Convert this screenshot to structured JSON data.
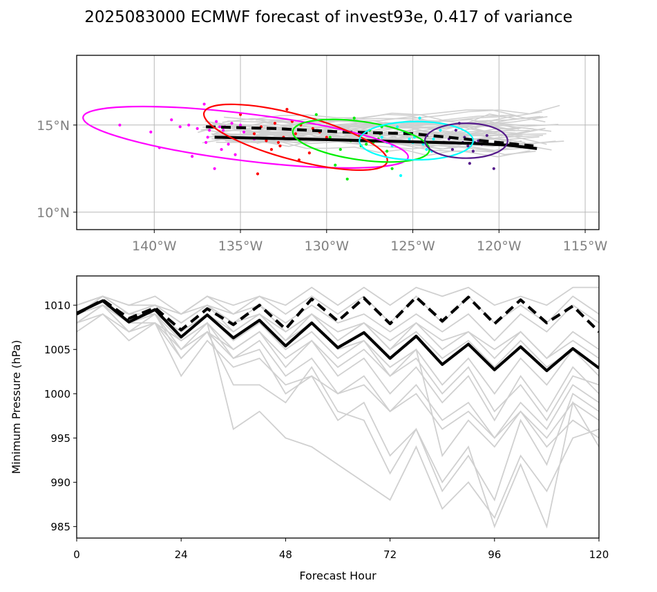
{
  "title": "2025083000 ECMWF forecast of invest93e, 0.417 of variance",
  "colors": {
    "ensemble": "#d0d0d0",
    "mean": "#000000",
    "grid": "#b8b8b8",
    "ellipse_day1": "#ff00ff",
    "ellipse_day2": "#ff0000",
    "ellipse_day3": "#00ee00",
    "ellipse_day4": "#00ffff",
    "ellipse_day5": "#551a8b"
  },
  "chart_data": [
    {
      "type": "scatter",
      "panel": "track-map",
      "title": "",
      "xlabel": "",
      "ylabel": "",
      "xlim": [
        -144.5,
        -114.2
      ],
      "ylim": [
        9.0,
        19.0
      ],
      "x_ticks": [
        -140,
        -135,
        -130,
        -125,
        -120,
        -115
      ],
      "x_tick_labels": [
        "140°W",
        "135°W",
        "130°W",
        "125°W",
        "120°W",
        "115°W"
      ],
      "y_ticks": [
        10,
        15
      ],
      "y_tick_labels": [
        "10°N",
        "15°N"
      ],
      "grid": true,
      "mean_tracks": [
        {
          "style": "dashed",
          "lon": [
            -137.0,
            -135.0,
            -133.0,
            -131.0,
            -129.0,
            -127.0,
            -125.0,
            -123.0,
            -121.0,
            -119.5,
            -118.0
          ],
          "lat": [
            14.9,
            14.85,
            14.8,
            14.7,
            14.6,
            14.55,
            14.5,
            14.3,
            14.1,
            13.95,
            13.8
          ]
        },
        {
          "style": "solid",
          "lon": [
            -136.5,
            -134.0,
            -131.5,
            -129.5,
            -127.5,
            -125.5,
            -123.5,
            -121.5,
            -119.5,
            -117.8
          ],
          "lat": [
            14.3,
            14.25,
            14.2,
            14.15,
            14.1,
            14.05,
            14.0,
            13.95,
            13.85,
            13.65
          ]
        }
      ],
      "ellipses": [
        {
          "name": "",
          "color_key": "ellipse_day1",
          "center_lon": -134.7,
          "center_lat": 14.3,
          "semi_major_deg": 9.5,
          "semi_minor_deg": 1.35,
          "angle_deg": -7
        },
        {
          "name": "",
          "color_key": "ellipse_day2",
          "center_lon": -131.8,
          "center_lat": 14.3,
          "semi_major_deg": 5.5,
          "semi_minor_deg": 1.3,
          "angle_deg": -15
        },
        {
          "name": "",
          "color_key": "ellipse_day3",
          "center_lon": -128.0,
          "center_lat": 14.1,
          "semi_major_deg": 4.0,
          "semi_minor_deg": 1.1,
          "angle_deg": -8
        },
        {
          "name": "",
          "color_key": "ellipse_day4",
          "center_lon": -124.8,
          "center_lat": 14.1,
          "semi_major_deg": 3.3,
          "semi_minor_deg": 1.1,
          "angle_deg": 0
        },
        {
          "name": "",
          "color_key": "ellipse_day5",
          "center_lon": -121.9,
          "center_lat": 14.1,
          "semi_major_deg": 2.4,
          "semi_minor_deg": 1.0,
          "angle_deg": 0
        }
      ],
      "points": [
        {
          "color_key": "ellipse_day1",
          "lon": [
            -142.0,
            -140.2,
            -139.7,
            -138.5,
            -137.5,
            -137.1,
            -136.9,
            -136.4,
            -136.0,
            -135.7,
            -135.3,
            -134.8,
            -136.5,
            -137.8,
            -136.2,
            -135.5,
            -134.2,
            -137.0,
            -136.1,
            -138.0,
            -135.9,
            -136.8,
            -135.0,
            -139.0
          ],
          "lat": [
            15.0,
            14.6,
            13.7,
            14.9,
            14.8,
            16.2,
            14.3,
            15.2,
            14.7,
            13.9,
            13.3,
            14.6,
            12.5,
            13.2,
            14.9,
            15.1,
            14.2,
            14.0,
            13.6,
            15.0,
            14.9,
            14.7,
            15.0,
            15.3
          ]
        },
        {
          "color_key": "ellipse_day2",
          "lon": [
            -135.0,
            -134.0,
            -133.5,
            -133.0,
            -132.7,
            -132.3,
            -131.8,
            -131.5,
            -131.0,
            -130.4,
            -132.5,
            -133.8,
            -131.2,
            -130.0,
            -132.0,
            -131.6,
            -134.2,
            -130.8,
            -133.2,
            -132.8
          ],
          "lat": [
            15.6,
            12.2,
            14.1,
            15.1,
            13.8,
            15.9,
            14.5,
            15.0,
            13.4,
            14.6,
            14.3,
            14.9,
            14.2,
            14.3,
            15.2,
            13.0,
            14.5,
            14.8,
            13.6,
            14.0
          ]
        },
        {
          "color_key": "ellipse_day3",
          "lon": [
            -130.6,
            -129.5,
            -129.0,
            -128.6,
            -128.0,
            -127.5,
            -127.0,
            -126.5,
            -126.2,
            -129.8,
            -128.4,
            -127.7,
            -126.9,
            -128.8,
            -127.3,
            -126.8,
            -129.2,
            -128.1
          ],
          "lat": [
            15.6,
            12.7,
            14.6,
            14.1,
            13.8,
            14.7,
            14.2,
            13.5,
            12.5,
            14.3,
            15.4,
            13.9,
            14.5,
            11.9,
            14.0,
            14.9,
            13.6,
            14.4
          ]
        },
        {
          "color_key": "ellipse_day4",
          "lon": [
            -126.8,
            -126.2,
            -125.7,
            -125.3,
            -125.0,
            -124.6,
            -124.2,
            -123.8,
            -123.4,
            -125.9,
            -124.9,
            -124.4,
            -125.5,
            -126.5,
            -123.9,
            -125.2
          ],
          "lat": [
            14.3,
            13.8,
            12.1,
            14.5,
            14.0,
            15.4,
            13.6,
            14.2,
            14.7,
            14.9,
            14.3,
            13.9,
            14.6,
            14.0,
            13.5,
            14.2
          ]
        },
        {
          "color_key": "ellipse_day5",
          "lon": [
            -123.2,
            -122.7,
            -122.3,
            -122.0,
            -121.7,
            -121.4,
            -121.0,
            -120.7,
            -120.3,
            -122.5,
            -121.8,
            -121.2,
            -122.9,
            -121.5,
            -122.1
          ],
          "lat": [
            14.0,
            13.6,
            15.1,
            14.3,
            12.8,
            14.0,
            13.9,
            14.4,
            12.5,
            14.7,
            13.8,
            14.1,
            14.2,
            13.5,
            14.0
          ]
        }
      ]
    },
    {
      "type": "line",
      "panel": "pressure",
      "title": "",
      "xlabel": "Forecast Hour",
      "ylabel": "Minimum Pressure (hPa)",
      "xlim": [
        0,
        120
      ],
      "ylim": [
        983.7,
        1013.3
      ],
      "x_ticks": [
        0,
        24,
        48,
        72,
        96,
        120
      ],
      "y_ticks": [
        985,
        990,
        995,
        1000,
        1005,
        1010
      ],
      "grid": false,
      "x": [
        0,
        6,
        12,
        18,
        24,
        30,
        36,
        42,
        48,
        54,
        60,
        66,
        72,
        78,
        84,
        90,
        96,
        102,
        108,
        114,
        120
      ],
      "mean_series": [
        {
          "style": "dashed",
          "values": [
            1009.0,
            1010.6,
            1008.5,
            1009.7,
            1007.2,
            1009.6,
            1007.8,
            1010.0,
            1007.3,
            1010.7,
            1008.2,
            1010.8,
            1007.9,
            1010.9,
            1008.2,
            1010.9,
            1007.9,
            1010.6,
            1008.0,
            1009.9,
            1007.0
          ]
        },
        {
          "style": "solid",
          "values": [
            1009.1,
            1010.5,
            1008.1,
            1009.5,
            1006.4,
            1008.9,
            1006.3,
            1008.3,
            1005.4,
            1008.0,
            1005.2,
            1006.9,
            1004.0,
            1006.5,
            1003.3,
            1005.6,
            1002.7,
            1005.3,
            1002.6,
            1005.1,
            1002.9
          ]
        }
      ],
      "series": [
        {
          "values": [
            1010,
            1011,
            1009,
            1010,
            1009,
            1011,
            1010,
            1011,
            1010,
            1012,
            1010,
            1012,
            1010,
            1012,
            1011,
            1012,
            1010,
            1011,
            1010,
            1012,
            1012
          ]
        },
        {
          "values": [
            1009,
            1010,
            1008,
            1009,
            1007,
            1009,
            1007,
            1009,
            1006,
            1009,
            1006,
            1008,
            1005,
            1008,
            1005,
            1007,
            1004,
            1007,
            1004,
            1007,
            1005
          ]
        },
        {
          "values": [
            1008,
            1010,
            1007,
            1009,
            1005,
            1008,
            1005,
            1007,
            1003,
            1006,
            1002,
            1004,
            1000,
            1003,
            999,
            1002,
            997,
            1002,
            998,
            1003,
            1000
          ]
        },
        {
          "values": [
            1009,
            1010,
            1008,
            1008,
            1006,
            1008,
            1004,
            1005,
            1000,
            1002,
            997,
            999,
            993,
            996,
            990,
            994,
            985,
            992,
            985,
            999,
            994
          ]
        },
        {
          "values": [
            1010,
            1011,
            1009,
            1010,
            1008,
            1010,
            1008,
            1009,
            1007,
            1009,
            1007,
            1008,
            1006,
            1008,
            1006,
            1007,
            1005,
            1007,
            1004,
            1006,
            1004
          ]
        },
        {
          "values": [
            1008,
            1010,
            1008,
            1009,
            1006,
            1008,
            996,
            998,
            995,
            994,
            992,
            990,
            988,
            994,
            987,
            990,
            986,
            993,
            989,
            995,
            996
          ]
        },
        {
          "values": [
            1009,
            1010,
            1009,
            1009,
            1004,
            1007,
            1001,
            1001,
            999,
            1003,
            998,
            997,
            991,
            996,
            989,
            993,
            988,
            997,
            992,
            1000,
            998
          ]
        },
        {
          "values": [
            1007,
            1009,
            1006,
            1008,
            1002,
            1006,
            1003,
            1004,
            1001,
            1002,
            1000,
            1001,
            998,
            1000,
            996,
            998,
            995,
            999,
            996,
            1001,
            999
          ]
        },
        {
          "values": [
            1010,
            1011,
            1010,
            1010,
            1009,
            1010,
            1009,
            1010,
            1008,
            1010,
            1008,
            1009,
            1007,
            1009,
            1007,
            1009,
            1006,
            1009,
            1007,
            1010,
            1008
          ]
        },
        {
          "values": [
            1009,
            1010,
            1008,
            1009,
            1007,
            1009,
            1006,
            1008,
            1005,
            1007,
            1004,
            1006,
            1002,
            1005,
            1001,
            1004,
            1000,
            1004,
            1001,
            1005,
            1002
          ]
        },
        {
          "values": [
            1008,
            1009,
            1007,
            1008,
            1005,
            1007,
            1005,
            1007,
            1004,
            1006,
            1003,
            1005,
            1002,
            1004,
            1000,
            1003,
            998,
            1001,
            997,
            1002,
            1001
          ]
        },
        {
          "values": [
            1010,
            1011,
            1009,
            1010,
            1008,
            1010,
            1007,
            1009,
            1006,
            1008,
            1005,
            1006,
            1003,
            1005,
            993,
            997,
            994,
            998,
            995,
            999,
            997
          ]
        },
        {
          "values": [
            1009,
            1011,
            1009,
            1010,
            1008,
            1010,
            1008,
            1010,
            1007,
            1009,
            1006,
            1008,
            1005,
            1007,
            1004,
            1006,
            1003,
            1006,
            1003,
            1005,
            1003
          ]
        },
        {
          "values": [
            1008,
            1010,
            1007,
            1008,
            1004,
            1007,
            1004,
            1006,
            1002,
            1004,
            1000,
            1002,
            998,
            1001,
            997,
            999,
            995,
            998,
            994,
            997,
            995
          ]
        },
        {
          "values": [
            1010,
            1011,
            1010,
            1011,
            1009,
            1011,
            1009,
            1011,
            1009,
            1011,
            1009,
            1011,
            1008,
            1011,
            1008,
            1011,
            1008,
            1010,
            1008,
            1011,
            1009
          ]
        }
      ]
    }
  ]
}
